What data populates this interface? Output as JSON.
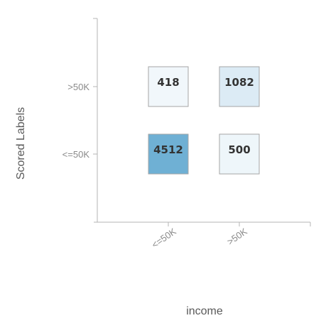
{
  "chart_data": {
    "type": "heatmap",
    "title": "",
    "xlabel": "income",
    "ylabel": "Scored Labels",
    "x_categories": [
      "<=50K",
      ">50K"
    ],
    "y_categories": [
      "<=50K",
      ">50K"
    ],
    "cells": [
      {
        "x": "<=50K",
        "y": ">50K",
        "value": 418
      },
      {
        "x": ">50K",
        "y": ">50K",
        "value": 1082
      },
      {
        "x": "<=50K",
        "y": "<=50K",
        "value": 4512
      },
      {
        "x": ">50K",
        "y": "<=50K",
        "value": 500
      }
    ],
    "color_low": "#f1f7fb",
    "color_high": "#6fb0d4",
    "grid": false,
    "legend": "none"
  }
}
